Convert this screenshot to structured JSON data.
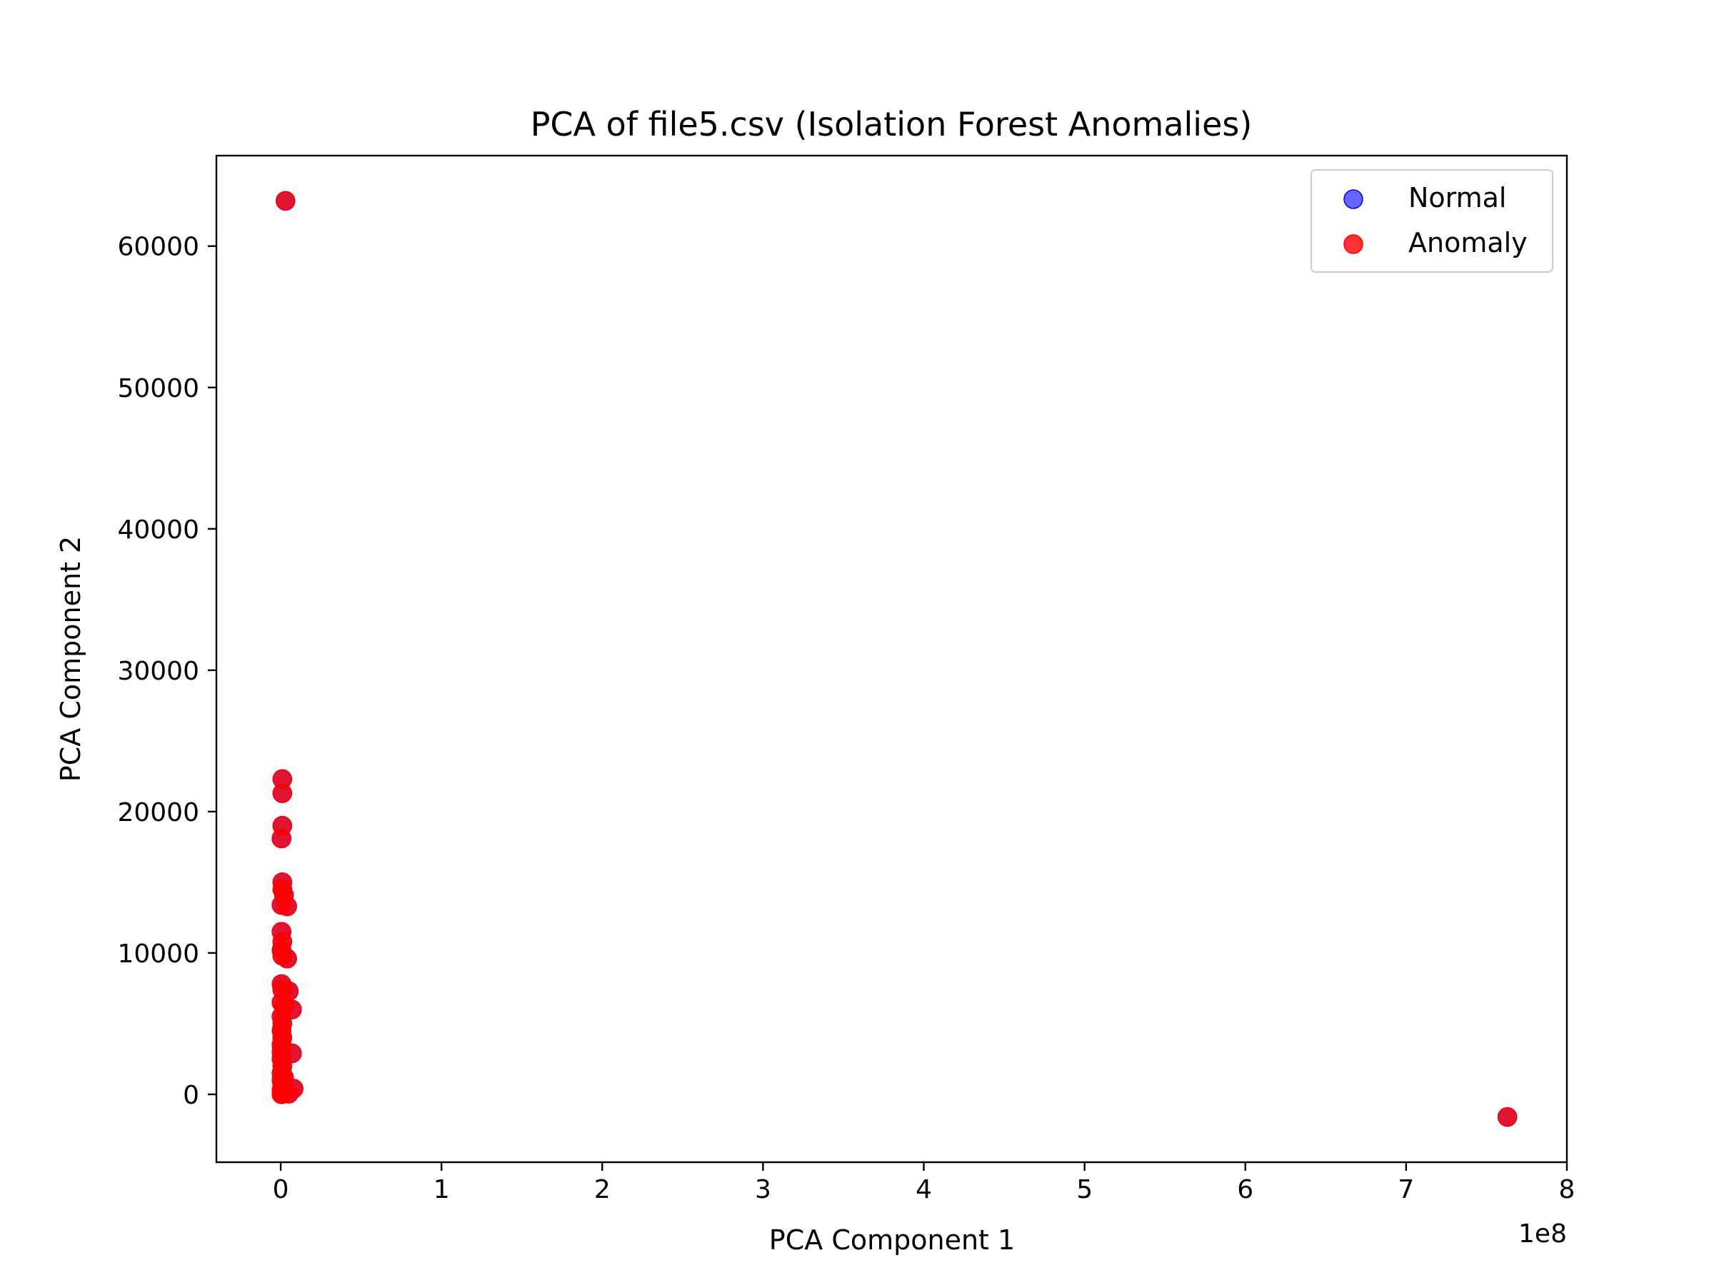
{
  "chart_data": {
    "type": "scatter",
    "title": "PCA of file5.csv (Isolation Forest Anomalies)",
    "xlabel": "PCA Component 1",
    "ylabel": "PCA Component 2",
    "x_offset_label": "1e8",
    "xlim": [
      -0.4,
      8.0
    ],
    "ylim": [
      -4800,
      66400
    ],
    "x_ticks": [
      0,
      1,
      2,
      3,
      4,
      5,
      6,
      7,
      8
    ],
    "x_tick_labels": [
      "0",
      "1",
      "2",
      "3",
      "4",
      "5",
      "6",
      "7",
      "8"
    ],
    "y_ticks": [
      0,
      10000,
      20000,
      30000,
      40000,
      50000,
      60000
    ],
    "y_tick_labels": [
      "0",
      "10000",
      "20000",
      "30000",
      "40000",
      "50000",
      "60000"
    ],
    "grid": false,
    "legend": {
      "position": "top-right",
      "entries": [
        {
          "label": "Normal",
          "color": "#0000ff"
        },
        {
          "label": "Anomaly",
          "color": "#ff0000"
        }
      ]
    },
    "series": [
      {
        "name": "Normal",
        "color": "#0000ff",
        "points": [
          [
            0.03,
            63200
          ],
          [
            0.01,
            22300
          ],
          [
            0.01,
            21300
          ],
          [
            0.01,
            19000
          ],
          [
            0.005,
            18100
          ],
          [
            0.01,
            15000
          ],
          [
            0.01,
            14500
          ],
          [
            0.02,
            14100
          ],
          [
            0.04,
            13300
          ],
          [
            0.005,
            13400
          ],
          [
            0.005,
            11500
          ],
          [
            0.01,
            10800
          ],
          [
            0.005,
            10200
          ],
          [
            0.01,
            9800
          ],
          [
            0.04,
            9600
          ],
          [
            0.005,
            7800
          ],
          [
            0.01,
            7400
          ],
          [
            0.05,
            7300
          ],
          [
            0.005,
            6500
          ],
          [
            0.02,
            6200
          ],
          [
            0.07,
            6000
          ],
          [
            0.005,
            5500
          ],
          [
            0.01,
            5000
          ],
          [
            0.005,
            4500
          ],
          [
            0.01,
            4000
          ],
          [
            0.005,
            3500
          ],
          [
            0.005,
            3000
          ],
          [
            0.07,
            2900
          ],
          [
            0.005,
            2500
          ],
          [
            0.01,
            2000
          ],
          [
            0.005,
            1500
          ],
          [
            0.02,
            1200
          ],
          [
            0.005,
            1000
          ],
          [
            0.01,
            700
          ],
          [
            0.08,
            400
          ],
          [
            0.005,
            300
          ],
          [
            0.03,
            200
          ],
          [
            0.01,
            100
          ],
          [
            0.05,
            50
          ],
          [
            0.005,
            0
          ],
          [
            7.63,
            -1600
          ]
        ]
      },
      {
        "name": "Anomaly",
        "color": "#ff0000",
        "points": [
          [
            0.03,
            63200
          ],
          [
            0.01,
            22300
          ],
          [
            0.01,
            21300
          ],
          [
            0.01,
            19000
          ],
          [
            0.005,
            18100
          ],
          [
            0.01,
            15000
          ],
          [
            0.01,
            14500
          ],
          [
            0.02,
            14100
          ],
          [
            0.04,
            13300
          ],
          [
            0.005,
            13400
          ],
          [
            0.005,
            11500
          ],
          [
            0.01,
            10800
          ],
          [
            0.005,
            10200
          ],
          [
            0.01,
            9800
          ],
          [
            0.04,
            9600
          ],
          [
            0.005,
            7800
          ],
          [
            0.01,
            7400
          ],
          [
            0.05,
            7300
          ],
          [
            0.005,
            6500
          ],
          [
            0.02,
            6200
          ],
          [
            0.07,
            6000
          ],
          [
            0.005,
            5500
          ],
          [
            0.01,
            5000
          ],
          [
            0.005,
            4500
          ],
          [
            0.01,
            4000
          ],
          [
            0.005,
            3500
          ],
          [
            0.005,
            3000
          ],
          [
            0.07,
            2900
          ],
          [
            0.005,
            2500
          ],
          [
            0.01,
            2000
          ],
          [
            0.005,
            1500
          ],
          [
            0.02,
            1200
          ],
          [
            0.005,
            1000
          ],
          [
            0.01,
            700
          ],
          [
            0.08,
            400
          ],
          [
            0.005,
            300
          ],
          [
            0.03,
            200
          ],
          [
            0.01,
            100
          ],
          [
            0.05,
            50
          ],
          [
            0.005,
            0
          ],
          [
            7.63,
            -1600
          ]
        ]
      }
    ]
  }
}
